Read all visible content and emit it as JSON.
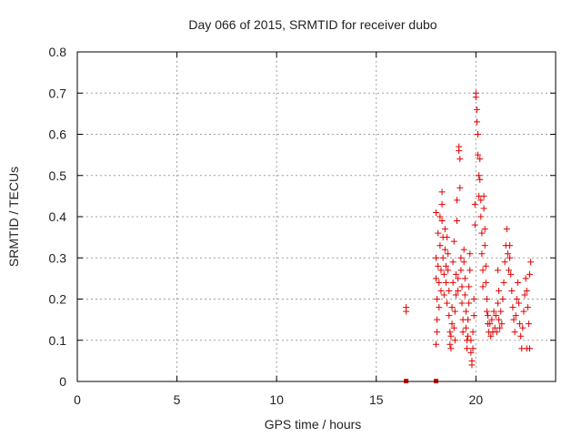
{
  "chart_data": {
    "type": "scatter",
    "title": "Day 066 of 2015, SRMTID for receiver dubo",
    "xlabel": "GPS time / hours",
    "ylabel": "SRMTID / TECUs",
    "xlim": [
      0,
      24
    ],
    "ylim": [
      0,
      0.8
    ],
    "xticks": [
      0,
      5,
      10,
      15,
      20
    ],
    "yticks": [
      0,
      0.1,
      0.2,
      0.3,
      0.4,
      0.5,
      0.6,
      0.7,
      0.8
    ],
    "xtick_labels": [
      "0",
      "5",
      "10",
      "15",
      "20"
    ],
    "ytick_labels": [
      "0",
      "0.1",
      "0.2",
      "0.3",
      "0.4",
      "0.5",
      "0.6",
      "0.7",
      "0.8"
    ],
    "grid": true,
    "legend": "none",
    "marker_color": "#e00000",
    "series": [
      {
        "marker": "plus",
        "points": [
          [
            16.5,
            0.18
          ],
          [
            16.5,
            0.17
          ],
          [
            18.0,
            0.41
          ],
          [
            18.0,
            0.3
          ],
          [
            18.0,
            0.25
          ],
          [
            18.05,
            0.2
          ],
          [
            18.05,
            0.15
          ],
          [
            18.05,
            0.12
          ],
          [
            18.0,
            0.09
          ],
          [
            18.1,
            0.36
          ],
          [
            18.1,
            0.28
          ],
          [
            18.15,
            0.24
          ],
          [
            18.15,
            0.18
          ],
          [
            18.2,
            0.4
          ],
          [
            18.2,
            0.33
          ],
          [
            18.25,
            0.27
          ],
          [
            18.25,
            0.22
          ],
          [
            18.3,
            0.46
          ],
          [
            18.3,
            0.43
          ],
          [
            18.3,
            0.39
          ],
          [
            18.35,
            0.35
          ],
          [
            18.35,
            0.3
          ],
          [
            18.4,
            0.26
          ],
          [
            18.4,
            0.21
          ],
          [
            18.45,
            0.37
          ],
          [
            18.45,
            0.32
          ],
          [
            18.5,
            0.28
          ],
          [
            18.5,
            0.24
          ],
          [
            18.55,
            0.19
          ],
          [
            18.55,
            0.35
          ],
          [
            18.6,
            0.31
          ],
          [
            18.6,
            0.27
          ],
          [
            18.65,
            0.22
          ],
          [
            18.65,
            0.16
          ],
          [
            18.7,
            0.12
          ],
          [
            18.7,
            0.09
          ],
          [
            18.75,
            0.08
          ],
          [
            18.75,
            0.11
          ],
          [
            18.8,
            0.14
          ],
          [
            18.8,
            0.18
          ],
          [
            18.85,
            0.24
          ],
          [
            18.85,
            0.29
          ],
          [
            18.9,
            0.34
          ],
          [
            18.9,
            0.13
          ],
          [
            18.95,
            0.1
          ],
          [
            18.95,
            0.17
          ],
          [
            19.0,
            0.21
          ],
          [
            19.0,
            0.26
          ],
          [
            19.05,
            0.39
          ],
          [
            19.05,
            0.44
          ],
          [
            19.1,
            0.25
          ],
          [
            19.1,
            0.22
          ],
          [
            19.15,
            0.57
          ],
          [
            19.15,
            0.56
          ],
          [
            19.2,
            0.54
          ],
          [
            19.2,
            0.47
          ],
          [
            19.25,
            0.3
          ],
          [
            19.25,
            0.27
          ],
          [
            19.3,
            0.23
          ],
          [
            19.3,
            0.19
          ],
          [
            19.35,
            0.15
          ],
          [
            19.35,
            0.12
          ],
          [
            19.4,
            0.32
          ],
          [
            19.4,
            0.29
          ],
          [
            19.45,
            0.25
          ],
          [
            19.45,
            0.21
          ],
          [
            19.5,
            0.17
          ],
          [
            19.5,
            0.13
          ],
          [
            19.55,
            0.1
          ],
          [
            19.55,
            0.08
          ],
          [
            19.6,
            0.11
          ],
          [
            19.6,
            0.15
          ],
          [
            19.65,
            0.19
          ],
          [
            19.65,
            0.23
          ],
          [
            19.7,
            0.27
          ],
          [
            19.7,
            0.31
          ],
          [
            19.75,
            0.1
          ],
          [
            19.75,
            0.07
          ],
          [
            19.8,
            0.05
          ],
          [
            19.8,
            0.04
          ],
          [
            19.85,
            0.08
          ],
          [
            19.85,
            0.12
          ],
          [
            19.9,
            0.16
          ],
          [
            19.9,
            0.2
          ],
          [
            19.95,
            0.43
          ],
          [
            19.95,
            0.38
          ],
          [
            20.0,
            0.7
          ],
          [
            20.0,
            0.69
          ],
          [
            20.05,
            0.66
          ],
          [
            20.05,
            0.63
          ],
          [
            20.1,
            0.6
          ],
          [
            20.1,
            0.55
          ],
          [
            20.15,
            0.5
          ],
          [
            20.15,
            0.45
          ],
          [
            20.2,
            0.54
          ],
          [
            20.2,
            0.49
          ],
          [
            20.25,
            0.44
          ],
          [
            20.25,
            0.4
          ],
          [
            20.3,
            0.36
          ],
          [
            20.3,
            0.31
          ],
          [
            20.35,
            0.27
          ],
          [
            20.35,
            0.23
          ],
          [
            20.4,
            0.45
          ],
          [
            20.4,
            0.42
          ],
          [
            20.45,
            0.37
          ],
          [
            20.45,
            0.33
          ],
          [
            20.5,
            0.28
          ],
          [
            20.5,
            0.24
          ],
          [
            20.55,
            0.2
          ],
          [
            20.55,
            0.17
          ],
          [
            20.6,
            0.14
          ],
          [
            20.6,
            0.16
          ],
          [
            20.65,
            0.12
          ],
          [
            20.7,
            0.14
          ],
          [
            20.75,
            0.11
          ],
          [
            20.8,
            0.15
          ],
          [
            20.85,
            0.12
          ],
          [
            20.9,
            0.17
          ],
          [
            20.95,
            0.13
          ],
          [
            21.0,
            0.16
          ],
          [
            21.05,
            0.12
          ],
          [
            21.1,
            0.19
          ],
          [
            21.1,
            0.27
          ],
          [
            21.15,
            0.22
          ],
          [
            21.15,
            0.15
          ],
          [
            21.2,
            0.13
          ],
          [
            21.25,
            0.17
          ],
          [
            21.3,
            0.14
          ],
          [
            21.35,
            0.2
          ],
          [
            21.4,
            0.24
          ],
          [
            21.45,
            0.29
          ],
          [
            21.5,
            0.33
          ],
          [
            21.55,
            0.37
          ],
          [
            21.6,
            0.31
          ],
          [
            21.65,
            0.27
          ],
          [
            21.7,
            0.33
          ],
          [
            21.7,
            0.3
          ],
          [
            21.75,
            0.26
          ],
          [
            21.8,
            0.22
          ],
          [
            21.85,
            0.18
          ],
          [
            21.9,
            0.15
          ],
          [
            21.95,
            0.12
          ],
          [
            22.0,
            0.16
          ],
          [
            22.05,
            0.2
          ],
          [
            22.1,
            0.24
          ],
          [
            22.15,
            0.19
          ],
          [
            22.2,
            0.14
          ],
          [
            22.25,
            0.11
          ],
          [
            22.3,
            0.08
          ],
          [
            22.35,
            0.13
          ],
          [
            22.4,
            0.17
          ],
          [
            22.45,
            0.21
          ],
          [
            22.5,
            0.25
          ],
          [
            22.55,
            0.22
          ],
          [
            22.6,
            0.18
          ],
          [
            22.65,
            0.14
          ],
          [
            22.7,
            0.26
          ],
          [
            22.75,
            0.29
          ],
          [
            22.7,
            0.08
          ],
          [
            22.55,
            0.08
          ]
        ]
      },
      {
        "marker": "square",
        "points": [
          [
            16.5,
            0.0
          ],
          [
            18.0,
            0.0
          ]
        ]
      }
    ]
  }
}
